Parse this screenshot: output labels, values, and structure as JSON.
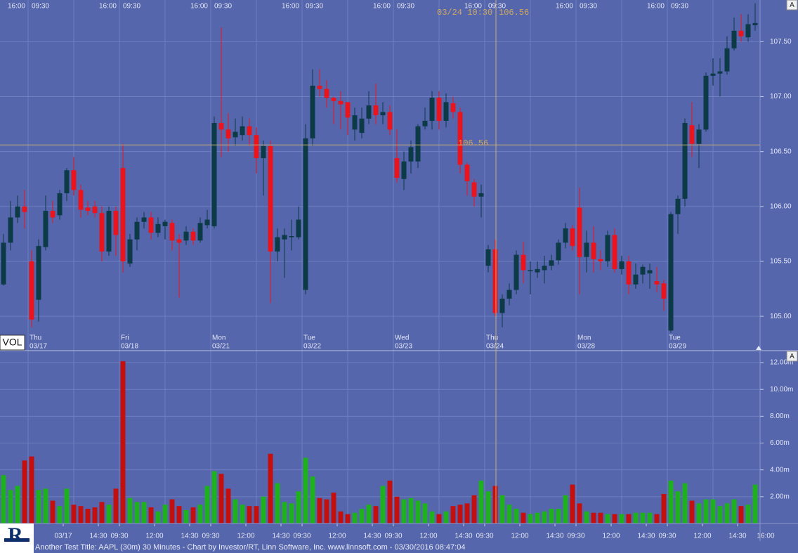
{
  "chart_data": {
    "type": "candlestick",
    "footer": "Another Test Title: AAPL (30m) 30 Minutes - Chart by Investor/RT, Linn Software, Inc. www.linnsoft.com - 03/30/2016 08:47:04",
    "volume_label": "VOL",
    "autoscale_button": "A",
    "logo": "R",
    "crosshair": {
      "time": "03/24 10:30",
      "value": 106.56
    },
    "up_color": "#0c3a46",
    "down_color": "#e8141e",
    "volume_up_color": "#1eb01e",
    "volume_down_color": "#c40f0f",
    "grid": true,
    "ylim": [
      104.7,
      107.88
    ],
    "yticks": [
      {
        "value": 105,
        "label": "105.00"
      },
      {
        "value": 105.5,
        "label": "105.50"
      },
      {
        "value": 106,
        "label": "106.00"
      },
      {
        "value": 106.5,
        "label": "106.50"
      },
      {
        "value": 107,
        "label": "107.00"
      },
      {
        "value": 107.5,
        "label": "107.50"
      }
    ],
    "volume_ylim": [
      0,
      12.84
    ],
    "volume_yticks": [
      {
        "value": 2,
        "label": "2.00m"
      },
      {
        "value": 4,
        "label": "4.00m"
      },
      {
        "value": 6,
        "label": "6.00m"
      },
      {
        "value": 8,
        "label": "8.00m"
      },
      {
        "value": 10,
        "label": "10.00m"
      },
      {
        "value": 12,
        "label": "12.00m"
      }
    ],
    "categories": [
      null,
      null,
      null,
      null,
      null,
      null,
      null,
      null,
      null,
      "03/17",
      null,
      null,
      null,
      null,
      "14:30",
      null,
      null,
      "09:30",
      null,
      null,
      null,
      null,
      "12:00",
      null,
      null,
      null,
      null,
      "14:30",
      null,
      null,
      "09:30",
      null,
      null,
      null,
      null,
      "12:00",
      null,
      null,
      null,
      null,
      "14:30",
      null,
      null,
      "09:30",
      null,
      null,
      null,
      null,
      "12:00",
      null,
      null,
      null,
      null,
      "14:30",
      null,
      null,
      "09:30",
      null,
      null,
      null,
      null,
      "12:00",
      null,
      null,
      null,
      null,
      "14:30",
      null,
      null,
      "09:30",
      null,
      null,
      null,
      null,
      "12:00",
      null,
      null,
      null,
      null,
      "14:30",
      null,
      null,
      "09:30",
      null,
      null,
      null,
      null,
      "12:00",
      null,
      null,
      null,
      null,
      "14:30",
      null,
      null,
      "09:30",
      null,
      null,
      null,
      null,
      "12:00",
      null,
      null,
      null,
      null,
      "14:30",
      null,
      null
    ],
    "x_end_label": "16:00",
    "session_labels": [
      null,
      null,
      null,
      "16:00",
      "09:30",
      null,
      null,
      null,
      null,
      null,
      null,
      null,
      null,
      null,
      null,
      null,
      "16:00",
      "09:30",
      null,
      null,
      null,
      null,
      null,
      null,
      null,
      null,
      null,
      null,
      null,
      "16:00",
      "09:30",
      null,
      null,
      null,
      null,
      null,
      null,
      null,
      null,
      null,
      null,
      null,
      "16:00",
      "09:30",
      null,
      null,
      null,
      null,
      null,
      null,
      null,
      null,
      null,
      null,
      null,
      "16:00",
      "09:30",
      null,
      null,
      null,
      null,
      null,
      null,
      null,
      null,
      null,
      null,
      null,
      "16:00",
      "09:30",
      null,
      null,
      null,
      null,
      null,
      null,
      null,
      null,
      null,
      null,
      null,
      "16:00",
      "09:30",
      null,
      null,
      null,
      null,
      null,
      null,
      null,
      null,
      null,
      null,
      null,
      "16:00",
      "09:30",
      null,
      null,
      null,
      null,
      null,
      null,
      null,
      null,
      null,
      null,
      null,
      null
    ],
    "days": [
      null,
      null,
      null,
      null,
      {
        "weekday": "Thu",
        "date": "03/17"
      },
      null,
      null,
      null,
      null,
      null,
      null,
      null,
      null,
      null,
      null,
      null,
      null,
      {
        "weekday": "Fri",
        "date": "03/18"
      },
      null,
      null,
      null,
      null,
      null,
      null,
      null,
      null,
      null,
      null,
      null,
      null,
      {
        "weekday": "Mon",
        "date": "03/21"
      },
      null,
      null,
      null,
      null,
      null,
      null,
      null,
      null,
      null,
      null,
      null,
      null,
      {
        "weekday": "Tue",
        "date": "03/22"
      },
      null,
      null,
      null,
      null,
      null,
      null,
      null,
      null,
      null,
      null,
      null,
      null,
      {
        "weekday": "Wed",
        "date": "03/23"
      },
      null,
      null,
      null,
      null,
      null,
      null,
      null,
      null,
      null,
      null,
      null,
      null,
      {
        "weekday": "Thu",
        "date": "03/24"
      },
      null,
      null,
      null,
      null,
      null,
      null,
      null,
      null,
      null,
      null,
      null,
      null,
      {
        "weekday": "Mon",
        "date": "03/28"
      },
      null,
      null,
      null,
      null,
      null,
      null,
      null,
      null,
      null,
      null,
      null,
      null,
      {
        "weekday": "Tue",
        "date": "03/29"
      },
      null,
      null,
      null,
      null,
      null,
      null,
      null,
      null,
      null,
      null,
      null,
      null
    ],
    "open": [
      105.29,
      105.67,
      105.9,
      106.0,
      105.5,
      105.15,
      105.63,
      105.96,
      105.92,
      106.12,
      106.33,
      106.15,
      105.99,
      106.0,
      105.94,
      105.59,
      105.96,
      106.35,
      105.48,
      105.7,
      105.86,
      105.9,
      105.76,
      105.82,
      105.85,
      105.7,
      105.69,
      105.77,
      105.69,
      105.83,
      105.82,
      106.76,
      106.7,
      106.63,
      106.65,
      106.73,
      106.65,
      106.44,
      106.55,
      105.59,
      105.7,
      105.72,
      105.72,
      105.24,
      106.62,
      107.1,
      107.07,
      106.99,
      106.96,
      106.95,
      106.7,
      106.67,
      106.8,
      106.92,
      106.83,
      106.86,
      106.44,
      106.25,
      106.41,
      106.41,
      106.73,
      106.78,
      106.99,
      106.78,
      106.94,
      106.86,
      106.38,
      106.22,
      106.09,
      105.46,
      105.61,
      105.03,
      105.16,
      105.24,
      105.56,
      105.41,
      105.4,
      105.42,
      105.46,
      105.51,
      105.67,
      105.8,
      105.99,
      105.54,
      105.67,
      105.52,
      105.5,
      105.74,
      105.43,
      105.5,
      105.29,
      105.38,
      105.39,
      105.32,
      105.3,
      104.87,
      105.93,
      106.07,
      106.74,
      106.57,
      106.7,
      107.19,
      107.21,
      107.23,
      107.44,
      107.6,
      107.54,
      107.65
    ],
    "high": [
      105.75,
      106.05,
      106.1,
      106.15,
      105.6,
      105.7,
      106.1,
      106.05,
      106.15,
      106.35,
      106.45,
      106.2,
      106.05,
      106.05,
      106.0,
      106.0,
      106.0,
      106.57,
      105.75,
      105.9,
      105.95,
      105.95,
      105.9,
      105.88,
      105.88,
      105.75,
      105.82,
      105.8,
      105.9,
      105.97,
      106.82,
      107.63,
      106.85,
      106.8,
      106.82,
      106.8,
      106.72,
      106.6,
      106.6,
      105.8,
      105.8,
      105.88,
      106.0,
      106.75,
      107.25,
      107.25,
      107.15,
      107.0,
      107.05,
      106.95,
      106.9,
      106.9,
      107.05,
      107.12,
      106.95,
      106.92,
      106.7,
      106.5,
      106.6,
      106.75,
      106.9,
      107.05,
      107.05,
      107.03,
      107.0,
      106.9,
      106.4,
      106.25,
      106.2,
      105.65,
      105.7,
      105.2,
      105.3,
      105.6,
      105.68,
      105.5,
      105.5,
      105.55,
      105.56,
      105.7,
      105.85,
      105.83,
      106.17,
      105.78,
      105.82,
      105.6,
      105.78,
      105.8,
      105.55,
      105.55,
      105.48,
      105.47,
      105.48,
      105.45,
      105.33,
      105.95,
      106.1,
      106.8,
      106.95,
      106.75,
      107.22,
      107.35,
      107.35,
      107.55,
      107.72,
      107.75,
      107.75,
      107.85
    ],
    "low": [
      105.28,
      105.6,
      105.85,
      105.8,
      104.9,
      104.95,
      105.6,
      105.85,
      105.88,
      106.05,
      106.1,
      105.9,
      105.92,
      105.9,
      105.5,
      105.55,
      105.55,
      105.4,
      105.45,
      105.6,
      105.8,
      105.7,
      105.72,
      105.7,
      105.6,
      105.17,
      105.65,
      105.65,
      105.67,
      105.8,
      105.8,
      106.45,
      106.5,
      106.55,
      106.6,
      106.55,
      106.3,
      106.1,
      105.12,
      105.5,
      105.35,
      105.6,
      105.7,
      105.2,
      106.55,
      107.0,
      106.9,
      106.75,
      106.7,
      106.65,
      106.6,
      106.62,
      106.75,
      106.75,
      106.75,
      106.65,
      106.22,
      106.15,
      106.3,
      106.35,
      106.7,
      106.7,
      106.7,
      106.72,
      106.8,
      106.3,
      106.1,
      106.0,
      105.9,
      105.4,
      105.0,
      104.9,
      105.1,
      105.2,
      105.3,
      105.2,
      105.35,
      105.3,
      105.42,
      105.47,
      105.62,
      105.6,
      105.2,
      105.4,
      105.4,
      105.42,
      105.45,
      105.4,
      105.38,
      105.2,
      105.25,
      105.3,
      105.25,
      105.22,
      105.05,
      104.85,
      105.75,
      106.0,
      106.45,
      106.35,
      106.68,
      107.1,
      107.0,
      107.2,
      107.42,
      107.5,
      107.5,
      107.6
    ],
    "close": [
      105.67,
      105.9,
      106.0,
      105.95,
      104.97,
      105.64,
      105.96,
      105.9,
      106.12,
      106.33,
      106.15,
      105.97,
      105.96,
      105.94,
      105.59,
      105.96,
      105.74,
      105.5,
      105.7,
      105.86,
      105.9,
      105.76,
      105.84,
      105.86,
      105.69,
      105.67,
      105.77,
      105.69,
      105.85,
      105.88,
      106.76,
      106.7,
      106.62,
      106.68,
      106.73,
      106.65,
      106.44,
      106.55,
      105.59,
      105.72,
      105.74,
      105.73,
      105.88,
      106.62,
      107.1,
      107.07,
      106.99,
      106.96,
      106.93,
      106.81,
      106.83,
      106.8,
      106.92,
      106.83,
      106.86,
      106.7,
      106.26,
      106.41,
      106.54,
      106.73,
      106.78,
      106.99,
      106.78,
      106.95,
      106.86,
      106.38,
      106.23,
      106.09,
      106.12,
      105.61,
      105.03,
      105.16,
      105.24,
      105.56,
      105.42,
      105.42,
      105.43,
      105.46,
      105.51,
      105.67,
      105.8,
      105.64,
      105.54,
      105.67,
      105.52,
      105.5,
      105.74,
      105.43,
      105.5,
      105.29,
      105.38,
      105.45,
      105.42,
      105.29,
      105.16,
      105.93,
      106.07,
      106.76,
      106.57,
      106.7,
      107.19,
      107.21,
      107.23,
      107.44,
      107.6,
      107.55,
      107.66,
      107.67
    ],
    "volume": [
      3.6,
      2.5,
      2.8,
      4.7,
      5.0,
      2.5,
      2.6,
      1.7,
      1.3,
      2.6,
      1.4,
      1.3,
      1.1,
      1.2,
      1.6,
      1.4,
      2.6,
      12.1,
      1.9,
      1.6,
      1.6,
      1.2,
      0.9,
      1.4,
      1.8,
      1.3,
      1.0,
      1.2,
      1.4,
      2.8,
      3.9,
      3.7,
      2.6,
      1.8,
      1.4,
      1.3,
      1.3,
      2.0,
      5.2,
      3.0,
      1.6,
      1.5,
      2.4,
      4.9,
      3.5,
      1.9,
      1.8,
      2.3,
      0.9,
      0.7,
      0.8,
      1.1,
      1.4,
      1.3,
      2.8,
      3.2,
      2.0,
      1.8,
      1.9,
      1.7,
      1.5,
      0.9,
      0.7,
      0.9,
      1.3,
      1.4,
      1.5,
      2.1,
      3.2,
      2.4,
      2.8,
      2.1,
      1.4,
      1.1,
      0.8,
      0.7,
      0.8,
      0.9,
      1.1,
      1.1,
      2.1,
      2.9,
      1.5,
      0.9,
      0.8,
      0.8,
      0.7,
      0.7,
      0.7,
      0.7,
      0.8,
      0.8,
      0.8,
      0.7,
      2.2,
      3.2,
      2.4,
      3.0,
      1.7,
      1.5,
      1.8,
      1.8,
      1.3,
      1.5,
      1.8,
      1.3,
      1.4,
      2.9
    ]
  }
}
